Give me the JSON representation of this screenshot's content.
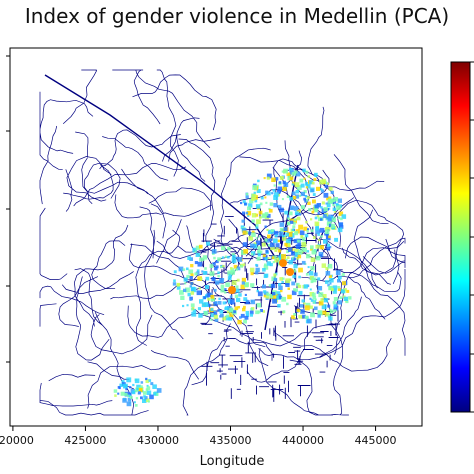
{
  "chart_data": {
    "type": "heatmap",
    "title": "Index of gender violence in Medellin (PCA)",
    "xlabel": "Longitude",
    "ylabel": "",
    "x_ticks": [
      420000,
      425000,
      430000,
      435000,
      440000,
      445000
    ],
    "x_tick_labels": [
      "420000",
      "425000",
      "430000",
      "435000",
      "440000",
      "445000"
    ],
    "xlim": [
      419800,
      448200
    ],
    "colormap": "jet",
    "colormap_stops": [
      "#00007f",
      "#0000ff",
      "#007fff",
      "#00ffff",
      "#7fff7f",
      "#ffff00",
      "#ff7f00",
      "#ff0000",
      "#7f0000"
    ],
    "network_color": "#000080",
    "colorbar": true,
    "grid": false
  }
}
